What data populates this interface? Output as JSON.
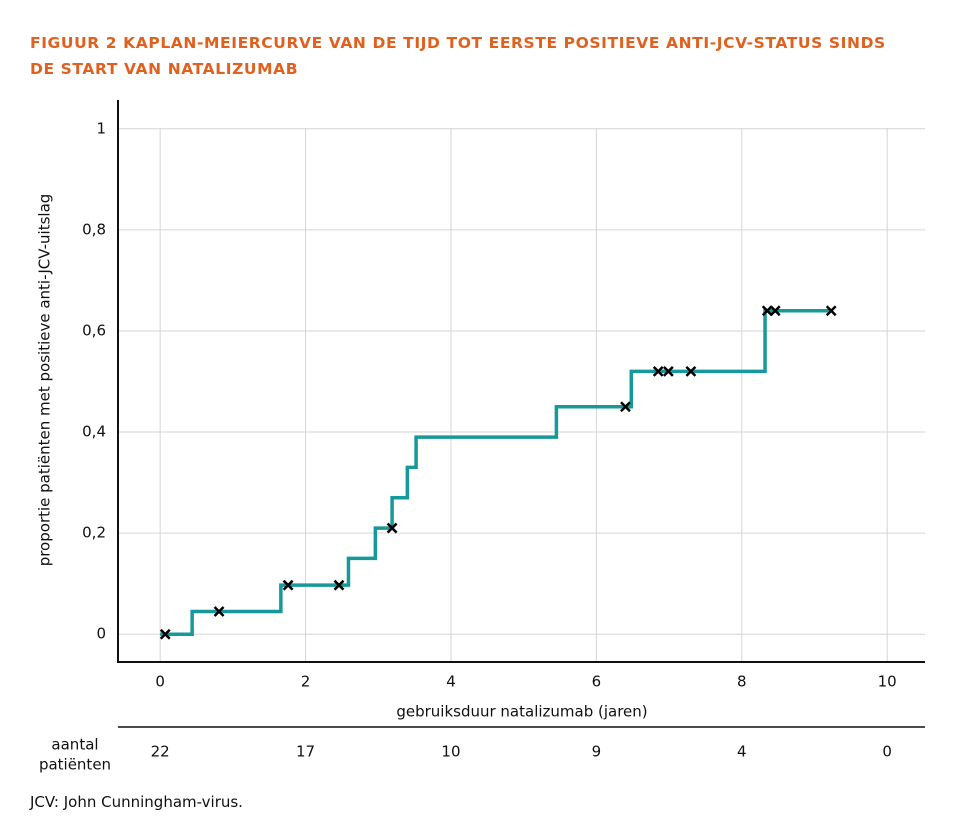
{
  "chart_data": {
    "type": "step",
    "title": "FIGUUR 2  KAPLAN-MEIERCURVE VAN DE TIJD TOT EERSTE POSITIEVE ANTI-JCV-STATUS SINDS DE START VAN NATALIZUMAB",
    "x_label": "gebruiksduur natalizumab (jaren)",
    "y_label": "proportie patiënten met positieve anti-JCV-uitslag",
    "footnote": "JCV: John Cunningham-virus.",
    "color": "#17989b",
    "curve": {
      "x": [
        0.0,
        0.44,
        1.66,
        2.59,
        2.96,
        3.19,
        3.4,
        3.52,
        5.45,
        6.48,
        8.32,
        9.23
      ],
      "values": [
        0,
        0.045,
        0.097,
        0.15,
        0.21,
        0.27,
        0.33,
        0.39,
        0.45,
        0.52,
        0.64,
        0.64
      ]
    },
    "censored": {
      "x": [
        0.07,
        0.81,
        1.76,
        2.46,
        3.19,
        6.4,
        6.85,
        6.99,
        7.3,
        8.35,
        8.46,
        9.23
      ],
      "values": [
        0,
        0.045,
        0.097,
        0.097,
        0.21,
        0.45,
        0.52,
        0.52,
        0.52,
        0.64,
        0.64,
        0.64
      ]
    },
    "xlim": [
      -0.58,
      10.52
    ],
    "ylim": [
      -0.055,
      1.057
    ],
    "xticks": [
      0,
      2,
      4,
      6,
      8,
      10
    ],
    "yticks": [
      0,
      {
        "value": 0.2,
        "label": "0,2"
      },
      {
        "value": 0.4,
        "label": "0,4"
      },
      {
        "value": 0.6,
        "label": "0,6"
      },
      {
        "value": 0.8,
        "label": "0,8"
      },
      1
    ],
    "grid": true,
    "risk_table": {
      "label_lines": [
        "aantal",
        "patiënten"
      ],
      "values": [
        22,
        17,
        10,
        9,
        4,
        0
      ]
    }
  }
}
